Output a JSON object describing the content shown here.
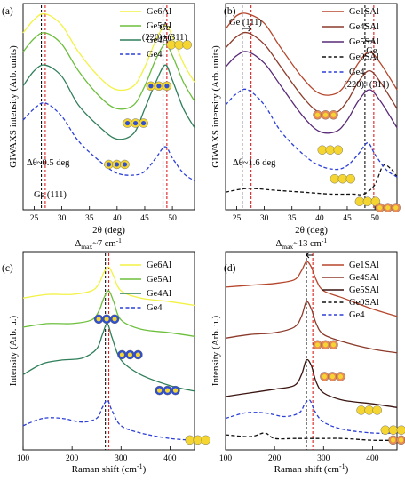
{
  "chart_data": [
    {
      "panel": "(a)",
      "type": "line",
      "xlabel": "2θ (deg)",
      "ylabel": "GIWAXS intensity (Arb. units)",
      "xlim": [
        23,
        54
      ],
      "xticks": [
        25,
        30,
        35,
        40,
        45,
        50
      ],
      "annotations": {
        "peak1": "Ge (111)",
        "peak2_top": "Ge",
        "peak2_bottom": "(220)+(311)",
        "shift": "Δθ~0.5 deg"
      },
      "dashed_markers": [
        26.3,
        27.0,
        48.3,
        49.0
      ],
      "legend_position": "top-right",
      "series": [
        {
          "name": "Ge6Al",
          "color": "#f2f244",
          "dash": false,
          "x": [
            23,
            25,
            27,
            30,
            33,
            37,
            40,
            43,
            45,
            47,
            48.7,
            50,
            52,
            54
          ],
          "y": [
            0.9,
            0.97,
            1.0,
            0.94,
            0.8,
            0.66,
            0.6,
            0.62,
            0.72,
            0.86,
            0.94,
            0.88,
            0.74,
            0.64
          ]
        },
        {
          "name": "Ge5Al",
          "color": "#6cbf3c",
          "dash": false,
          "x": [
            23,
            25,
            27,
            30,
            33,
            37,
            40,
            43,
            45,
            47,
            48.7,
            50,
            52,
            54
          ],
          "y": [
            0.8,
            0.87,
            0.9,
            0.84,
            0.7,
            0.56,
            0.5,
            0.52,
            0.62,
            0.76,
            0.84,
            0.78,
            0.64,
            0.54
          ]
        },
        {
          "name": "Ge4Al",
          "color": "#2f7f5a",
          "dash": false,
          "x": [
            23,
            25,
            27,
            30,
            33,
            37,
            40,
            43,
            45,
            47,
            48.7,
            50,
            52,
            54
          ],
          "y": [
            0.62,
            0.7,
            0.73,
            0.67,
            0.52,
            0.4,
            0.34,
            0.37,
            0.5,
            0.64,
            0.73,
            0.65,
            0.5,
            0.4
          ]
        },
        {
          "name": "Ge4",
          "color": "#2c3fd6",
          "dash": true,
          "x": [
            23,
            25,
            27,
            30,
            33,
            37,
            40,
            43,
            45,
            47,
            48.7,
            50,
            52,
            54
          ],
          "y": [
            0.44,
            0.5,
            0.53,
            0.46,
            0.33,
            0.22,
            0.16,
            0.15,
            0.17,
            0.24,
            0.3,
            0.24,
            0.16,
            0.12
          ]
        }
      ]
    },
    {
      "panel": "(b)",
      "type": "line",
      "xlabel": "2θ (deg)",
      "ylabel": "GIWAXS intensity (Arb. units)",
      "xlim": [
        23,
        54
      ],
      "xticks": [
        25,
        30,
        35,
        40,
        45,
        50
      ],
      "annotations": {
        "peak1": "Ge (111)",
        "peak2_top": "Ge",
        "peak2_bottom": "(220)+(311)",
        "shift": "Δθ~1.6 deg"
      },
      "dashed_markers": [
        26.0,
        27.6,
        48.2,
        49.8
      ],
      "legend_position": "top-right",
      "series": [
        {
          "name": "Ge1SAl",
          "color": "#b5462c",
          "dash": false,
          "x": [
            23,
            25,
            27,
            30,
            33,
            37,
            40,
            43,
            45,
            47,
            49,
            51,
            54
          ],
          "y": [
            0.92,
            0.99,
            1.0,
            0.95,
            0.82,
            0.66,
            0.58,
            0.58,
            0.64,
            0.74,
            0.8,
            0.74,
            0.6
          ]
        },
        {
          "name": "Ge4SAl",
          "color": "#8c3a2a",
          "dash": false,
          "x": [
            23,
            25,
            27,
            30,
            33,
            37,
            40,
            43,
            45,
            47,
            49,
            51,
            54
          ],
          "y": [
            0.82,
            0.88,
            0.9,
            0.84,
            0.72,
            0.56,
            0.48,
            0.48,
            0.54,
            0.64,
            0.7,
            0.64,
            0.5
          ]
        },
        {
          "name": "Ge5SAl",
          "color": "#5a2a78",
          "dash": false,
          "x": [
            23,
            25,
            27,
            30,
            33,
            37,
            40,
            43,
            45,
            47,
            49,
            51,
            54
          ],
          "y": [
            0.72,
            0.78,
            0.8,
            0.74,
            0.62,
            0.46,
            0.38,
            0.38,
            0.44,
            0.54,
            0.6,
            0.54,
            0.4
          ]
        },
        {
          "name": "Ge0SAl",
          "color": "#111111",
          "dash": true,
          "x": [
            23,
            27,
            32,
            37,
            42,
            46,
            48,
            50,
            51.5,
            53,
            54
          ],
          "y": [
            0.06,
            0.08,
            0.07,
            0.06,
            0.05,
            0.05,
            0.05,
            0.1,
            0.2,
            0.18,
            0.14
          ]
        },
        {
          "name": "Ge4",
          "color": "#2c3fd6",
          "dash": true,
          "x": [
            23,
            25,
            27,
            30,
            33,
            37,
            40,
            43,
            45,
            47,
            48.7,
            50,
            52,
            54
          ],
          "y": [
            0.52,
            0.58,
            0.6,
            0.52,
            0.38,
            0.26,
            0.2,
            0.18,
            0.2,
            0.26,
            0.32,
            0.26,
            0.18,
            0.14
          ]
        }
      ]
    },
    {
      "panel": "(c)",
      "type": "line",
      "xlabel": "Raman shift (cm⁻¹)",
      "ylabel": "Intensity (Arb. u.)",
      "xlim": [
        100,
        450
      ],
      "xticks": [
        100,
        200,
        300,
        400
      ],
      "annotations": {
        "title": "Δ",
        "title_sub": "max",
        "title_rest": "~7 cm",
        "title_sup": "-1"
      },
      "dashed_markers": [
        268,
        275
      ],
      "legend_position": "top-right",
      "series": [
        {
          "name": "Ge6Al",
          "color": "#f2f244",
          "dash": false,
          "x": [
            100,
            150,
            200,
            240,
            255,
            265,
            275,
            285,
            300,
            340,
            400,
            450
          ],
          "y": [
            0.8,
            0.82,
            0.82,
            0.84,
            0.88,
            0.94,
            0.97,
            0.92,
            0.84,
            0.8,
            0.78,
            0.76
          ]
        },
        {
          "name": "Ge5Al",
          "color": "#6cbf3c",
          "dash": false,
          "x": [
            100,
            150,
            200,
            240,
            255,
            265,
            275,
            285,
            300,
            340,
            400,
            450
          ],
          "y": [
            0.64,
            0.66,
            0.66,
            0.68,
            0.73,
            0.8,
            0.84,
            0.78,
            0.68,
            0.63,
            0.61,
            0.59
          ]
        },
        {
          "name": "Ge4Al",
          "color": "#2f7f5a",
          "dash": false,
          "x": [
            100,
            140,
            180,
            220,
            250,
            262,
            272,
            282,
            300,
            340,
            400,
            450
          ],
          "y": [
            0.38,
            0.44,
            0.46,
            0.47,
            0.52,
            0.6,
            0.66,
            0.58,
            0.46,
            0.38,
            0.32,
            0.29
          ]
        },
        {
          "name": "Ge4",
          "color": "#2c3fd6",
          "dash": true,
          "x": [
            100,
            140,
            180,
            220,
            250,
            262,
            272,
            282,
            300,
            340,
            400,
            450
          ],
          "y": [
            0.1,
            0.14,
            0.14,
            0.12,
            0.14,
            0.2,
            0.24,
            0.18,
            0.1,
            0.06,
            0.03,
            0.02
          ]
        }
      ]
    },
    {
      "panel": "(d)",
      "type": "line",
      "xlabel": "Raman shift (cm⁻¹)",
      "ylabel": "Intensity (Arb. u.)",
      "xlim": [
        100,
        450
      ],
      "xticks": [
        100,
        200,
        300,
        400
      ],
      "annotations": {
        "title": "Δ",
        "title_sub": "max",
        "title_rest": "~13 cm",
        "title_sup": "-1"
      },
      "dashed_markers": [
        265,
        278
      ],
      "legend_position": "top-right",
      "series": [
        {
          "name": "Ge1SAl",
          "color": "#b5462c",
          "dash": false,
          "x": [
            100,
            150,
            200,
            240,
            255,
            265,
            275,
            285,
            300,
            340,
            400,
            450
          ],
          "y": [
            0.86,
            0.87,
            0.88,
            0.9,
            0.95,
            1.0,
            0.97,
            0.9,
            0.84,
            0.8,
            0.74,
            0.7
          ]
        },
        {
          "name": "Ge4SAl",
          "color": "#8c3a2a",
          "dash": false,
          "x": [
            100,
            150,
            200,
            240,
            255,
            265,
            275,
            285,
            300,
            340,
            400,
            450
          ],
          "y": [
            0.58,
            0.6,
            0.61,
            0.64,
            0.7,
            0.78,
            0.74,
            0.66,
            0.6,
            0.56,
            0.52,
            0.5
          ]
        },
        {
          "name": "Ge5SAl",
          "color": "#3a1410",
          "dash": false,
          "x": [
            100,
            150,
            200,
            240,
            255,
            265,
            275,
            285,
            300,
            340,
            400,
            450
          ],
          "y": [
            0.26,
            0.28,
            0.3,
            0.32,
            0.38,
            0.46,
            0.43,
            0.34,
            0.28,
            0.24,
            0.22,
            0.2
          ]
        },
        {
          "name": "Ge0SAl",
          "color": "#111111",
          "dash": true,
          "x": [
            100,
            150,
            180,
            200,
            240,
            270,
            300,
            340,
            400,
            450
          ],
          "y": [
            0.05,
            0.04,
            0.06,
            0.03,
            0.03,
            0.03,
            0.03,
            0.03,
            0.02,
            0.02
          ]
        },
        {
          "name": "Ge4",
          "color": "#2c3fd6",
          "dash": true,
          "x": [
            100,
            140,
            180,
            220,
            250,
            262,
            272,
            282,
            300,
            340,
            400,
            450
          ],
          "y": [
            0.14,
            0.17,
            0.17,
            0.15,
            0.17,
            0.22,
            0.24,
            0.18,
            0.12,
            0.08,
            0.06,
            0.06
          ]
        }
      ]
    }
  ]
}
